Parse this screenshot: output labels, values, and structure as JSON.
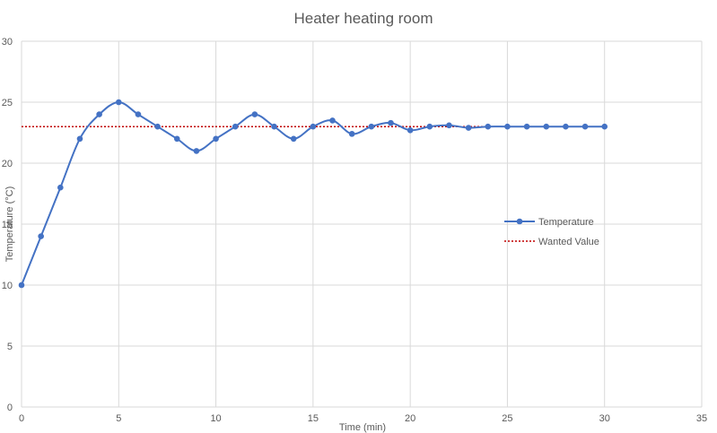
{
  "chart_data": {
    "type": "line",
    "title": "Heater heating room",
    "xlabel": "Time (min)",
    "ylabel": "Temperature (°C)",
    "xlim": [
      0,
      35
    ],
    "ylim": [
      0,
      30
    ],
    "xticks": [
      0,
      5,
      10,
      15,
      20,
      25,
      30,
      35
    ],
    "yticks": [
      0,
      5,
      10,
      15,
      20,
      25,
      30
    ],
    "grid": true,
    "legend_position": "right",
    "series": [
      {
        "name": "Temperature",
        "color": "#4472C4",
        "style": "smooth-line-markers",
        "x": [
          0,
          1,
          2,
          3,
          4,
          5,
          6,
          7,
          8,
          9,
          10,
          11,
          12,
          13,
          14,
          15,
          16,
          17,
          18,
          19,
          20,
          21,
          22,
          23,
          24,
          25,
          26,
          27,
          28,
          29,
          30
        ],
        "y": [
          10,
          14,
          18,
          22,
          24,
          25,
          24,
          23,
          22,
          21,
          22,
          23,
          24,
          23,
          22,
          23,
          23.5,
          22.4,
          23,
          23.3,
          22.7,
          23,
          23.1,
          22.9,
          23,
          23,
          23,
          23,
          23,
          23,
          23
        ]
      },
      {
        "name": "Wanted Value",
        "color": "#C00000",
        "style": "dotted",
        "x": [
          0,
          30
        ],
        "y": [
          23,
          23
        ]
      }
    ]
  }
}
